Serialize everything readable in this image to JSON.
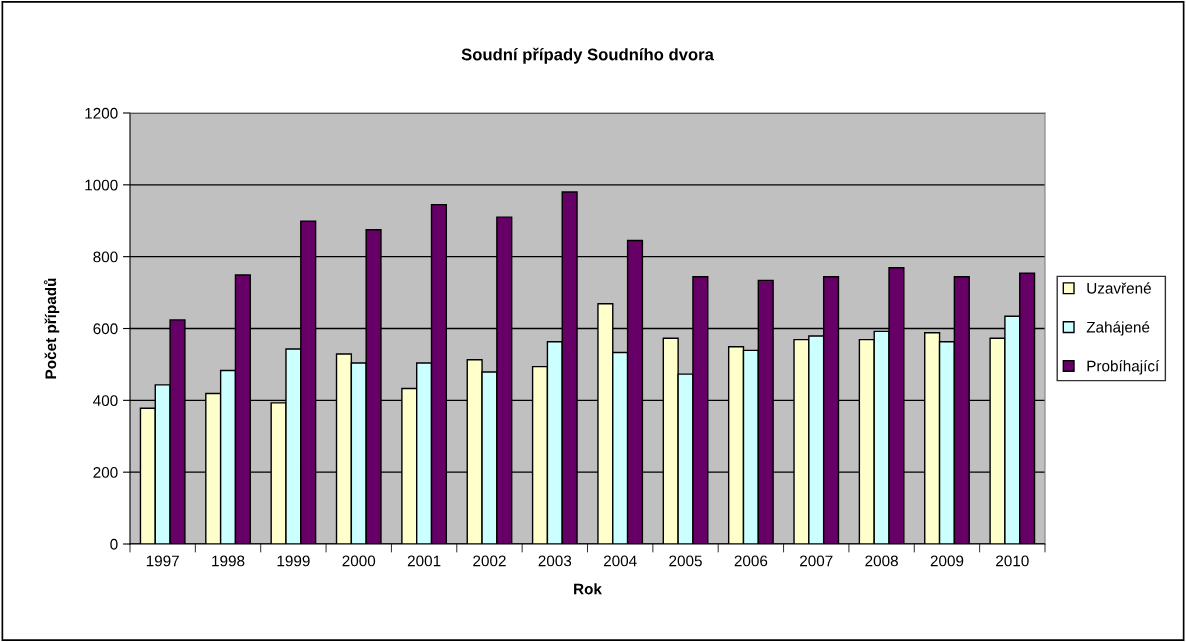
{
  "chart_data": {
    "type": "bar",
    "title": "Soudní případy Soudního dvora",
    "xlabel": "Rok",
    "ylabel": "Počet případů",
    "categories": [
      "1997",
      "1998",
      "1999",
      "2000",
      "2001",
      "2002",
      "2003",
      "2004",
      "2005",
      "2006",
      "2007",
      "2008",
      "2009",
      "2010"
    ],
    "series": [
      {
        "name": "Uzavřené",
        "color": "#ffffcc",
        "values": [
          378,
          419,
          393,
          529,
          433,
          513,
          494,
          669,
          573,
          549,
          569,
          569,
          588,
          573
        ]
      },
      {
        "name": "Zahájené",
        "color": "#ccffff",
        "values": [
          443,
          483,
          543,
          504,
          504,
          479,
          563,
          533,
          473,
          539,
          579,
          592,
          563,
          634
        ]
      },
      {
        "name": "Probíhající",
        "color": "#660066",
        "values": [
          624,
          749,
          899,
          875,
          945,
          910,
          980,
          845,
          744,
          734,
          744,
          769,
          744,
          754
        ]
      }
    ],
    "ylim": [
      0,
      1200
    ],
    "yticks": [
      0,
      200,
      400,
      600,
      800,
      1000,
      1200
    ],
    "grid": "y",
    "legend": "right"
  }
}
